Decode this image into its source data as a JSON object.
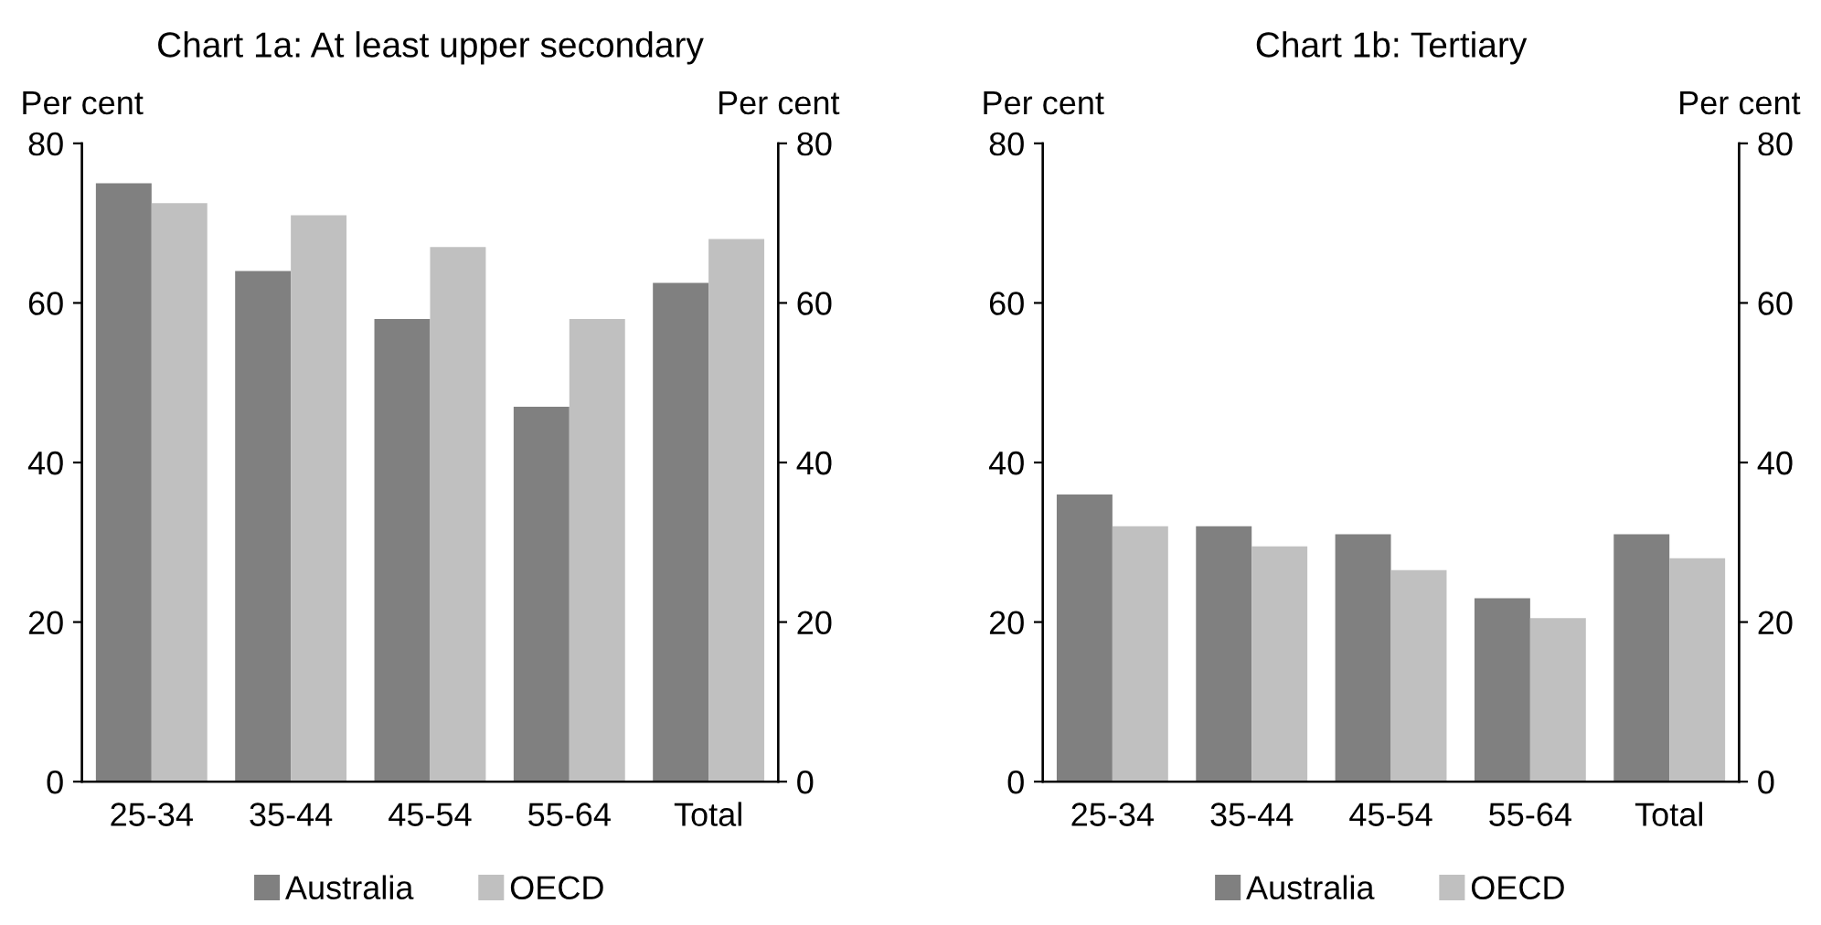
{
  "chart_data": [
    {
      "type": "bar",
      "title": "Chart 1a: At least upper secondary",
      "ylabel": "Per cent",
      "y2label": "Per cent",
      "categories": [
        "25-34",
        "35-44",
        "45-54",
        "55-64",
        "Total"
      ],
      "series": [
        {
          "name": "Australia",
          "color": "#808080",
          "values": [
            75,
            64,
            58,
            47,
            62.5
          ]
        },
        {
          "name": "OECD",
          "color": "#c0c0c0",
          "values": [
            72.5,
            71,
            67,
            58,
            68
          ]
        }
      ],
      "ylim": [
        0,
        80
      ],
      "yticks": [
        0,
        20,
        40,
        60,
        80
      ],
      "y2lim": [
        0,
        80
      ],
      "y2ticks": [
        0,
        20,
        40,
        60,
        80
      ],
      "legend": "bottom"
    },
    {
      "type": "bar",
      "title": "Chart 1b: Tertiary",
      "ylabel": "Per cent",
      "y2label": "Per cent",
      "categories": [
        "25-34",
        "35-44",
        "45-54",
        "55-64",
        "Total"
      ],
      "series": [
        {
          "name": "Australia",
          "color": "#808080",
          "values": [
            36,
            32,
            31,
            23,
            31
          ]
        },
        {
          "name": "OECD",
          "color": "#c0c0c0",
          "values": [
            32,
            29.5,
            26.5,
            20.5,
            28
          ]
        }
      ],
      "ylim": [
        0,
        80
      ],
      "yticks": [
        0,
        20,
        40,
        60,
        80
      ],
      "y2lim": [
        0,
        80
      ],
      "y2ticks": [
        0,
        20,
        40,
        60,
        80
      ],
      "legend": "bottom"
    }
  ]
}
